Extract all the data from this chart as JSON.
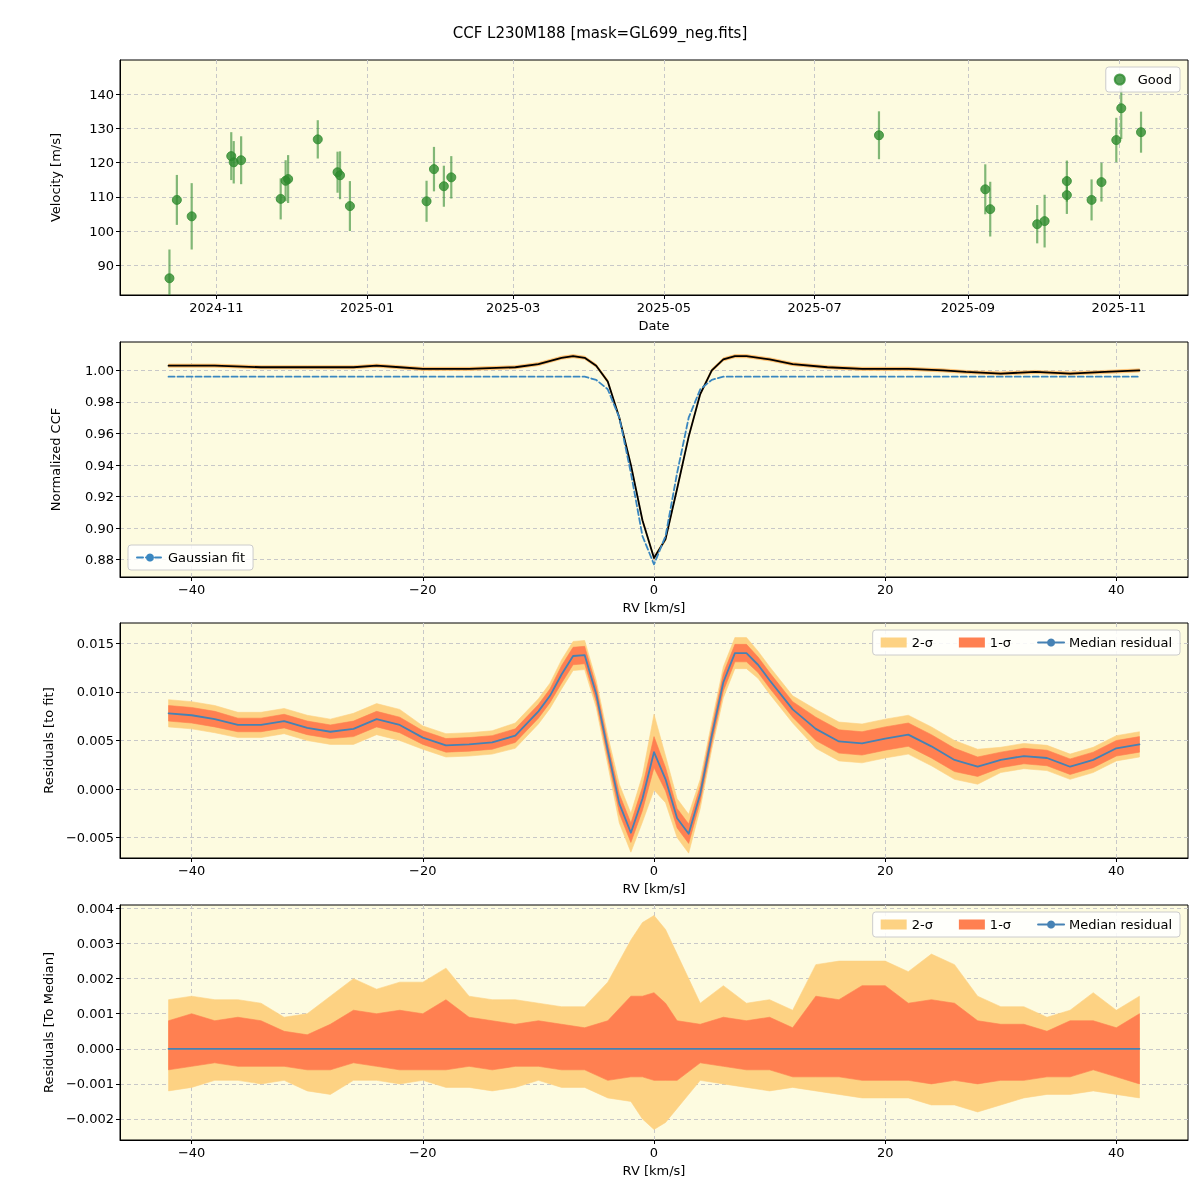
{
  "chart_data": [
    {
      "type": "scatter",
      "title": "CCF L230M188 [mask=GL699_neg.fits]",
      "xlabel": "Date",
      "ylabel": "Velocity [m/s]",
      "x": [
        "2024-10-13",
        "2024-10-16",
        "2024-10-22",
        "2024-11-07",
        "2024-11-08",
        "2024-11-11",
        "2024-11-27",
        "2024-11-29",
        "2024-11-30",
        "2024-12-12",
        "2024-12-20",
        "2024-12-21",
        "2024-12-25",
        "2025-01-25",
        "2025-01-28",
        "2025-02-01",
        "2025-02-04",
        "2025-07-27",
        "2025-09-08",
        "2025-09-10",
        "2025-09-29",
        "2025-10-02",
        "2025-10-11",
        "2025-10-11",
        "2025-10-21",
        "2025-10-25",
        "2025-10-31",
        "2025-11-02",
        "2025-11-10"
      ],
      "series": [
        {
          "name": "Good",
          "color": "#2e8b2e",
          "values": [
            86.2,
            109.1,
            104.3,
            121.9,
            120.1,
            120.7,
            109.4,
            114.7,
            115.2,
            126.8,
            117.2,
            116.3,
            107.3,
            108.7,
            118.1,
            113.1,
            115.7,
            128.0,
            112.2,
            106.4,
            102.0,
            102.9,
            114.6,
            110.5,
            109.1,
            114.3,
            126.6,
            135.9,
            128.9
          ],
          "errors": [
            [
              81.3,
              94.6
            ],
            7.3,
            9.7,
            7,
            6.2,
            7,
            6,
            6,
            7,
            5.6,
            6,
            7,
            7.3,
            6,
            6.5,
            6,
            6.2,
            7,
            7.3,
            8,
            5.6,
            7.7,
            6,
            5.5,
            6,
            5.7,
            6.5,
            9,
            6
          ]
        }
      ],
      "xlim": [
        "2024-09-23",
        "2025-11-29"
      ],
      "xticks": [
        "2024-11",
        "2025-01",
        "2025-03",
        "2025-05",
        "2025-07",
        "2025-09",
        "2025-11"
      ],
      "ylim": [
        81.3,
        150
      ],
      "yticks": [
        90,
        100,
        110,
        120,
        130,
        140
      ],
      "grid": true,
      "legend": "top right",
      "marker": "circle"
    },
    {
      "type": "line",
      "xlabel": "RV [km/s]",
      "ylabel": "Normalized CCF",
      "x": [
        -42,
        -38,
        -34,
        -30,
        -26,
        -24,
        -22,
        -20,
        -16,
        -12,
        -10,
        -8,
        -7,
        -6,
        -5,
        -4,
        -3,
        -2,
        -1,
        0,
        1,
        2,
        3,
        4,
        5,
        6,
        7,
        8,
        10,
        12,
        15,
        18,
        20,
        22,
        25,
        27,
        30,
        33,
        36,
        39,
        42
      ],
      "series": [
        {
          "type": "line",
          "color": "#fdb863",
          "values": [
            null,
            null,
            null,
            null,
            null,
            null,
            null,
            null,
            null,
            null,
            null,
            null,
            null,
            null,
            null,
            null,
            null,
            null,
            null,
            null,
            null,
            null,
            null,
            null,
            null,
            null,
            null,
            null,
            null,
            null,
            null,
            null,
            null,
            null,
            null,
            null,
            null,
            null,
            null,
            null,
            null
          ],
          "lower": [
            1.002,
            1.002,
            1.001,
            1.001,
            1.001,
            1.002,
            1.001,
            1.0,
            1.0,
            1.001,
            1.003,
            1.007,
            1.008,
            1.007,
            1.002,
            0.992,
            0.969,
            0.939,
            0.904,
            0.88,
            0.892,
            0.924,
            0.957,
            0.984,
            0.999,
            1.006,
            1.008,
            1.008,
            1.006,
            1.003,
            1.001,
            1.0,
            1.0,
            1.0,
            0.999,
            0.998,
            0.997,
            0.998,
            0.997,
            0.998,
            0.999
          ],
          "upper": [
            1.004,
            1.004,
            1.003,
            1.003,
            1.003,
            1.004,
            1.003,
            1.002,
            1.002,
            1.003,
            1.005,
            1.009,
            1.01,
            1.009,
            1.004,
            0.994,
            0.971,
            0.941,
            0.906,
            0.882,
            0.894,
            0.926,
            0.959,
            0.986,
            1.001,
            1.008,
            1.01,
            1.01,
            1.008,
            1.005,
            1.003,
            1.002,
            1.002,
            1.002,
            1.001,
            1.0,
            0.999,
            1.0,
            0.999,
            1.0,
            1.001
          ]
        },
        {
          "type": "line",
          "color": "#000000",
          "values": [
            1.003,
            1.003,
            1.002,
            1.002,
            1.002,
            1.003,
            1.002,
            1.001,
            1.001,
            1.002,
            1.004,
            1.008,
            1.009,
            1.008,
            1.003,
            0.993,
            0.97,
            0.94,
            0.905,
            0.881,
            0.893,
            0.925,
            0.958,
            0.985,
            1.0,
            1.007,
            1.009,
            1.009,
            1.007,
            1.004,
            1.002,
            1.001,
            1.001,
            1.001,
            1.0,
            0.999,
            0.998,
            0.999,
            0.998,
            0.999,
            1.0
          ]
        },
        {
          "type": "line",
          "name": "Gaussian fit",
          "color": "#3a87c0",
          "line_style": "dashed",
          "x": [
            -42,
            -6,
            -5,
            -4,
            -3,
            -2,
            -1,
            0,
            1,
            2,
            3,
            4,
            5,
            6,
            42
          ],
          "values": [
            0.996,
            0.996,
            0.994,
            0.988,
            0.97,
            0.935,
            0.895,
            0.877,
            0.895,
            0.935,
            0.97,
            0.988,
            0.994,
            0.996,
            0.996
          ]
        }
      ],
      "xlim": [
        -46.2,
        46.2
      ],
      "xticks": [
        -40,
        -20,
        0,
        20,
        40
      ],
      "ylim": [
        0.869,
        1.018
      ],
      "yticks": [
        0.88,
        {
          "value": 0.9,
          "label": "0.90"
        },
        0.92,
        0.94,
        0.96,
        0.98,
        {
          "value": 1,
          "label": "1.00"
        }
      ],
      "grid": true,
      "legend": "bottom left"
    },
    {
      "type": "line",
      "xlabel": "RV [km/s]",
      "ylabel": "Residuals [to fit]",
      "x": [
        -42,
        -40,
        -38,
        -36,
        -34,
        -32,
        -30,
        -28,
        -26,
        -24,
        -22,
        -20,
        -18,
        -16,
        -14,
        -12,
        -10,
        -9,
        -8,
        -7,
        -6,
        -5,
        -4,
        -3,
        -2,
        -1,
        0,
        1,
        2,
        3,
        4,
        5,
        6,
        7,
        8,
        9,
        10,
        12,
        14,
        16,
        18,
        20,
        22,
        24,
        26,
        28,
        30,
        32,
        34,
        36,
        38,
        40,
        42
      ],
      "series": [
        {
          "type": "line",
          "name": "2-σ",
          "color": "#fdd283",
          "values": [
            null,
            null,
            null,
            null,
            null,
            null,
            null,
            null,
            null,
            null,
            null,
            null,
            null,
            null,
            null,
            null,
            null,
            null,
            null,
            null,
            null,
            null,
            null,
            null,
            null,
            null,
            null,
            null,
            null,
            null,
            null,
            null,
            null,
            null,
            null,
            null,
            null,
            null,
            null,
            null,
            null,
            null,
            null,
            null,
            null,
            null,
            null,
            null,
            null,
            null,
            null,
            null,
            null
          ],
          "lower": [
            0.0064,
            0.0062,
            0.0058,
            0.0053,
            0.0053,
            0.0057,
            0.005,
            0.0046,
            0.0046,
            0.0056,
            0.005,
            0.0041,
            0.0033,
            0.0034,
            0.0036,
            0.0042,
            0.0067,
            0.0083,
            0.0103,
            0.0122,
            0.0123,
            0.0084,
            0.0025,
            -0.0035,
            -0.0065,
            -0.0034,
            -0.0001,
            -0.0014,
            -0.005,
            -0.0066,
            -0.002,
            0.0041,
            0.0094,
            0.0124,
            0.0124,
            0.0114,
            0.0098,
            0.0068,
            0.0042,
            0.0029,
            0.0027,
            0.0032,
            0.0036,
            0.0024,
            0.001,
            0.0005,
            0.0017,
            0.0021,
            0.0019,
            0.001,
            0.0017,
            0.0029,
            0.0033
          ],
          "upper": [
            0.0092,
            0.009,
            0.0086,
            0.0079,
            0.0079,
            0.0083,
            0.0076,
            0.0072,
            0.0078,
            0.0088,
            0.0082,
            0.0065,
            0.0057,
            0.0058,
            0.006,
            0.0068,
            0.0093,
            0.0109,
            0.0133,
            0.0152,
            0.0153,
            0.0112,
            0.0055,
            0.0005,
            -0.0025,
            0.0014,
            0.0077,
            0.0034,
            -0.001,
            -0.0026,
            0.001,
            0.0069,
            0.0126,
            0.0156,
            0.0156,
            0.0142,
            0.0126,
            0.0096,
            0.0082,
            0.0069,
            0.0067,
            0.0072,
            0.0076,
            0.0064,
            0.005,
            0.0041,
            0.0043,
            0.0047,
            0.0045,
            0.0036,
            0.0043,
            0.0055,
            0.0059
          ]
        },
        {
          "type": "line",
          "name": "1-σ",
          "color": "#ff8051",
          "values": [
            null,
            null,
            null,
            null,
            null,
            null,
            null,
            null,
            null,
            null,
            null,
            null,
            null,
            null,
            null,
            null,
            null,
            null,
            null,
            null,
            null,
            null,
            null,
            null,
            null,
            null,
            null,
            null,
            null,
            null,
            null,
            null,
            null,
            null,
            null,
            null,
            null,
            null,
            null,
            null,
            null,
            null,
            null,
            null,
            null,
            null,
            null,
            null,
            null,
            null,
            null,
            null,
            null
          ],
          "lower": [
            0.007,
            0.0068,
            0.0064,
            0.0059,
            0.0059,
            0.0063,
            0.0056,
            0.0052,
            0.0054,
            0.0064,
            0.0058,
            0.0046,
            0.0038,
            0.0039,
            0.0041,
            0.0048,
            0.0073,
            0.0089,
            0.0109,
            0.0128,
            0.0129,
            0.009,
            0.0032,
            -0.0025,
            -0.0055,
            -0.0022,
            0.0022,
            -0.0002,
            -0.004,
            -0.0056,
            -0.0013,
            0.0047,
            0.0101,
            0.0131,
            0.0131,
            0.012,
            0.0104,
            0.0074,
            0.005,
            0.0037,
            0.0035,
            0.004,
            0.0044,
            0.0032,
            0.0018,
            0.0013,
            0.0022,
            0.0026,
            0.0024,
            0.0015,
            0.0022,
            0.0034,
            0.0038
          ],
          "upper": [
            0.0086,
            0.0084,
            0.008,
            0.0073,
            0.0073,
            0.0077,
            0.007,
            0.0066,
            0.007,
            0.008,
            0.0074,
            0.006,
            0.0052,
            0.0053,
            0.0055,
            0.0062,
            0.0087,
            0.0103,
            0.0127,
            0.0146,
            0.0147,
            0.0106,
            0.0048,
            -0.0005,
            -0.0035,
            0.0002,
            0.0054,
            0.0022,
            -0.002,
            -0.0036,
            0.0003,
            0.0063,
            0.0119,
            0.0149,
            0.0149,
            0.0136,
            0.012,
            0.009,
            0.0074,
            0.0061,
            0.0059,
            0.0064,
            0.0068,
            0.0056,
            0.0042,
            0.0033,
            0.0038,
            0.0042,
            0.004,
            0.0031,
            0.0038,
            0.005,
            0.0054
          ]
        },
        {
          "type": "line",
          "name": "Median residual",
          "color": "#4682b4",
          "values": [
            0.0078,
            0.0076,
            0.0072,
            0.0066,
            0.0066,
            0.007,
            0.0063,
            0.0059,
            0.0062,
            0.0072,
            0.0066,
            0.0053,
            0.0045,
            0.0046,
            0.0048,
            0.0055,
            0.008,
            0.0096,
            0.0118,
            0.0137,
            0.0138,
            0.0098,
            0.004,
            -0.0015,
            -0.0045,
            -0.001,
            0.0038,
            0.001,
            -0.003,
            -0.0046,
            -0.0005,
            0.0055,
            0.011,
            0.014,
            0.014,
            0.0128,
            0.0112,
            0.0082,
            0.0062,
            0.0049,
            0.0047,
            0.0052,
            0.0056,
            0.0044,
            0.003,
            0.0023,
            0.003,
            0.0034,
            0.0032,
            0.0023,
            0.003,
            0.0042,
            0.0046
          ]
        }
      ],
      "xlim": [
        -46.2,
        46.2
      ],
      "xticks": [
        -40,
        -20,
        0,
        20,
        40
      ],
      "ylim": [
        -0.0071,
        0.0171
      ],
      "yticks": [
        {
          "value": -0.005,
          "label": "−0.005"
        },
        {
          "value": 0,
          "label": "0.000"
        },
        0.005,
        {
          "value": 0.01,
          "label": "0.010"
        },
        0.015
      ],
      "grid": true,
      "legend": "top right"
    },
    {
      "type": "line",
      "xlabel": "RV [km/s]",
      "ylabel": "Residuals [To Median]",
      "x": [
        -42,
        -40,
        -38,
        -36,
        -34,
        -32,
        -30,
        -28,
        -26,
        -24,
        -22,
        -20,
        -18,
        -16,
        -14,
        -12,
        -10,
        -8,
        -6,
        -4,
        -2,
        -1,
        0,
        1,
        2,
        4,
        6,
        8,
        10,
        12,
        14,
        16,
        18,
        20,
        22,
        24,
        26,
        28,
        30,
        32,
        34,
        36,
        38,
        40,
        42
      ],
      "series": [
        {
          "type": "line",
          "name": "2-σ",
          "color": "#fdd283",
          "values": [
            null,
            null,
            null,
            null,
            null,
            null,
            null,
            null,
            null,
            null,
            null,
            null,
            null,
            null,
            null,
            null,
            null,
            null,
            null,
            null,
            null,
            null,
            null,
            null,
            null,
            null,
            null,
            null,
            null,
            null,
            null,
            null,
            null,
            null,
            null,
            null,
            null,
            null,
            null,
            null,
            null,
            null,
            null,
            null,
            null
          ],
          "lower": [
            -0.0012,
            -0.0011,
            -0.0009,
            -0.0009,
            -0.001,
            -0.0009,
            -0.0012,
            -0.0013,
            -0.0009,
            -0.0009,
            -0.001,
            -0.0009,
            -0.0011,
            -0.0011,
            -0.0012,
            -0.0011,
            -0.0009,
            -0.0011,
            -0.0011,
            -0.0014,
            -0.0015,
            -0.002,
            -0.0023,
            -0.0021,
            -0.0017,
            -0.0009,
            -0.001,
            -0.0011,
            -0.0012,
            -0.0011,
            -0.0012,
            -0.0013,
            -0.0014,
            -0.0014,
            -0.0014,
            -0.0016,
            -0.0016,
            -0.0018,
            -0.0016,
            -0.0014,
            -0.0013,
            -0.0013,
            -0.0012,
            -0.0013,
            -0.0014
          ],
          "upper": [
            0.0014,
            0.0015,
            0.0014,
            0.0014,
            0.0013,
            0.0009,
            0.001,
            0.0015,
            0.002,
            0.0017,
            0.0019,
            0.0019,
            0.0023,
            0.0015,
            0.0014,
            0.0014,
            0.0013,
            0.0012,
            0.0012,
            0.0019,
            0.0031,
            0.0036,
            0.0038,
            0.0034,
            0.0027,
            0.0013,
            0.0018,
            0.0013,
            0.0014,
            0.0011,
            0.0024,
            0.0025,
            0.0025,
            0.0025,
            0.0022,
            0.0027,
            0.0024,
            0.0015,
            0.0012,
            0.0012,
            0.0009,
            0.0011,
            0.0016,
            0.0011,
            0.0015
          ]
        },
        {
          "type": "line",
          "name": "1-σ",
          "color": "#ff8051",
          "values": [
            null,
            null,
            null,
            null,
            null,
            null,
            null,
            null,
            null,
            null,
            null,
            null,
            null,
            null,
            null,
            null,
            null,
            null,
            null,
            null,
            null,
            null,
            null,
            null,
            null,
            null,
            null,
            null,
            null,
            null,
            null,
            null,
            null,
            null,
            null,
            null,
            null,
            null,
            null,
            null,
            null,
            null,
            null,
            null,
            null
          ],
          "lower": [
            -0.0006,
            -0.0005,
            -0.0004,
            -0.0005,
            -0.0005,
            -0.0005,
            -0.0006,
            -0.0006,
            -0.0004,
            -0.0005,
            -0.0006,
            -0.0006,
            -0.0006,
            -0.0005,
            -0.0006,
            -0.0005,
            -0.0005,
            -0.0006,
            -0.0006,
            -0.0009,
            -0.0008,
            -0.0008,
            -0.0009,
            -0.0009,
            -0.0009,
            -0.0004,
            -0.0005,
            -0.0006,
            -0.0006,
            -0.0008,
            -0.0008,
            -0.0008,
            -0.0009,
            -0.0009,
            -0.0009,
            -0.001,
            -0.0009,
            -0.001,
            -0.0009,
            -0.0009,
            -0.0008,
            -0.0008,
            -0.0006,
            -0.0008,
            -0.001
          ],
          "upper": [
            0.0008,
            0.001,
            0.0008,
            0.0009,
            0.0008,
            0.0005,
            0.0004,
            0.0007,
            0.0011,
            0.001,
            0.0011,
            0.001,
            0.0014,
            0.0009,
            0.0008,
            0.0007,
            0.0008,
            0.0007,
            0.0006,
            0.0008,
            0.0015,
            0.0015,
            0.0016,
            0.0013,
            0.0008,
            0.0007,
            0.0009,
            0.0008,
            0.0009,
            0.0006,
            0.0015,
            0.0014,
            0.0018,
            0.0018,
            0.0013,
            0.0014,
            0.0013,
            0.0008,
            0.0007,
            0.0007,
            0.0005,
            0.0008,
            0.0008,
            0.0006,
            0.001
          ]
        },
        {
          "type": "line",
          "name": "Median residual",
          "color": "#4682b4",
          "x": [
            -42,
            42
          ],
          "values": [
            0,
            0
          ]
        }
      ],
      "xlim": [
        -46.2,
        46.2
      ],
      "xticks": [
        -40,
        -20,
        0,
        20,
        40
      ],
      "ylim": [
        -0.0026,
        0.0041
      ],
      "yticks": [
        {
          "value": -0.002,
          "label": "−0.002"
        },
        {
          "value": -0.001,
          "label": "−0.001"
        },
        {
          "value": 0,
          "label": "0.000"
        },
        0.001,
        0.002,
        0.003,
        0.004
      ],
      "grid": true,
      "legend": "top right"
    }
  ]
}
